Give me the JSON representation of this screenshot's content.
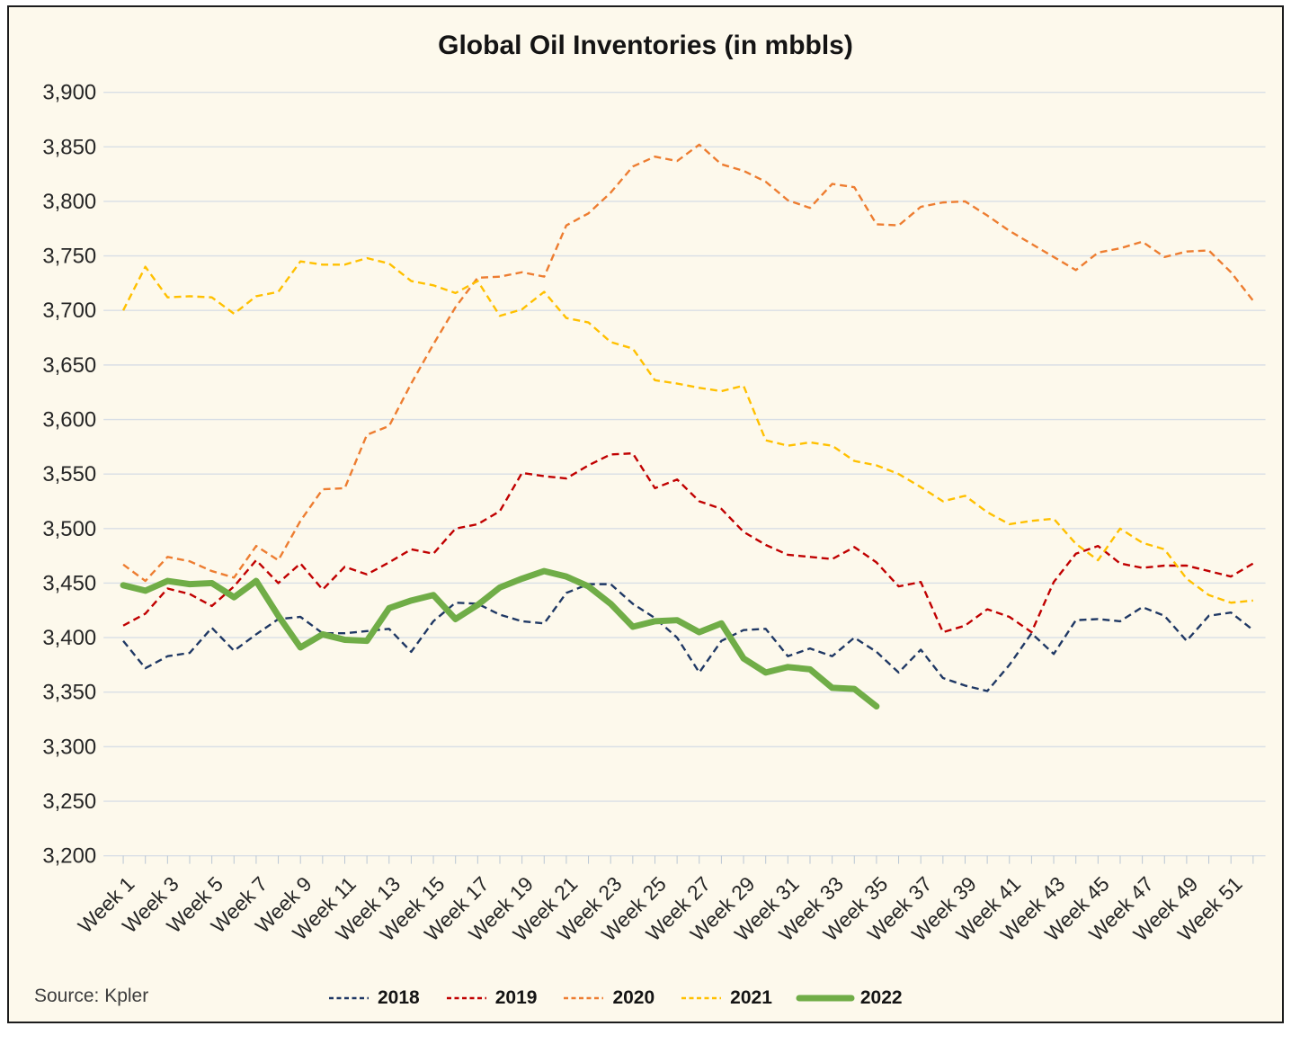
{
  "chart": {
    "background": "#fdf9ec",
    "border_color": "#1c1c1c",
    "gridline_color": "#d9dfe6",
    "tick_color": "#b9c6d4",
    "text_color": "#262626",
    "source_label": "Source: Kpler"
  },
  "chart_data": {
    "type": "line",
    "title": "Global Oil Inventories (in mbbls)",
    "xlabel": "",
    "ylabel": "",
    "ylim": [
      3200,
      3900
    ],
    "grid": "horizontal",
    "legend_position": "bottom",
    "y_ticks": [
      3900,
      3850,
      3800,
      3750,
      3700,
      3650,
      3600,
      3550,
      3500,
      3450,
      3400,
      3350,
      3300,
      3250,
      3200
    ],
    "y_tick_labels": [
      "3,900",
      "3,850",
      "3,800",
      "3,750",
      "3,700",
      "3,650",
      "3,600",
      "3,550",
      "3,500",
      "3,450",
      "3,400",
      "3,350",
      "3,300",
      "3,250",
      "3,200"
    ],
    "x_unit": "week",
    "x_tick_weeks": [
      1,
      3,
      5,
      7,
      9,
      11,
      13,
      15,
      17,
      19,
      21,
      23,
      25,
      27,
      29,
      31,
      33,
      35,
      37,
      39,
      41,
      43,
      45,
      47,
      49,
      51
    ],
    "x_tick_labels": [
      "Week 1",
      "Week 3",
      "Week 5",
      "Week 7",
      "Week 9",
      "Week 11",
      "Week 13",
      "Week 15",
      "Week 17",
      "Week 19",
      "Week 21",
      "Week 23",
      "Week 25",
      "Week 27",
      "Week 29",
      "Week 31",
      "Week 33",
      "Week 35",
      "Week 37",
      "Week 39",
      "Week 41",
      "Week 43",
      "Week 45",
      "Week 47",
      "Week 49",
      "Week 51"
    ],
    "series": [
      {
        "name": "2018",
        "color": "#1f3864",
        "style": "dashed",
        "width": 2.4,
        "values": [
          3397,
          3372,
          3383,
          3386,
          3409,
          3388,
          3403,
          3417,
          3419,
          3404,
          3404,
          3406,
          3408,
          3387,
          3415,
          3432,
          3431,
          3421,
          3415,
          3413,
          3441,
          3449,
          3449,
          3431,
          3418,
          3400,
          3368,
          3397,
          3407,
          3408,
          3383,
          3390,
          3383,
          3400,
          3387,
          3368,
          3389,
          3363,
          3356,
          3351,
          3375,
          3404,
          3385,
          3416,
          3417,
          3415,
          3428,
          3420,
          3397,
          3420,
          3423,
          3407
        ]
      },
      {
        "name": "2019",
        "color": "#c00000",
        "style": "dashed",
        "width": 2.4,
        "values": [
          3411,
          3422,
          3445,
          3440,
          3429,
          3447,
          3471,
          3450,
          3468,
          3444,
          3465,
          3458,
          3469,
          3481,
          3477,
          3500,
          3504,
          3516,
          3551,
          3548,
          3546,
          3558,
          3568,
          3569,
          3537,
          3545,
          3525,
          3518,
          3497,
          3485,
          3476,
          3474,
          3472,
          3483,
          3469,
          3447,
          3451,
          3405,
          3411,
          3426,
          3419,
          3405,
          3451,
          3477,
          3484,
          3468,
          3464,
          3466,
          3466,
          3461,
          3456,
          3468
        ]
      },
      {
        "name": "2020",
        "color": "#ed7d31",
        "style": "dashed",
        "width": 2.4,
        "values": [
          3467,
          3452,
          3474,
          3470,
          3461,
          3455,
          3484,
          3471,
          3507,
          3536,
          3537,
          3586,
          3594,
          3633,
          3669,
          3703,
          3730,
          3731,
          3735,
          3731,
          3778,
          3789,
          3808,
          3832,
          3841,
          3837,
          3852,
          3834,
          3828,
          3818,
          3801,
          3794,
          3816,
          3813,
          3779,
          3778,
          3795,
          3799,
          3800,
          3787,
          3773,
          3761,
          3749,
          3737,
          3753,
          3757,
          3763,
          3749,
          3754,
          3755,
          3735,
          3709
        ]
      },
      {
        "name": "2021",
        "color": "#ffc000",
        "style": "dashed",
        "width": 2.4,
        "values": [
          3700,
          3740,
          3712,
          3713,
          3712,
          3697,
          3713,
          3717,
          3745,
          3742,
          3742,
          3748,
          3743,
          3727,
          3723,
          3716,
          3727,
          3695,
          3701,
          3717,
          3693,
          3689,
          3671,
          3665,
          3636,
          3633,
          3629,
          3626,
          3631,
          3581,
          3576,
          3579,
          3576,
          3562,
          3558,
          3550,
          3538,
          3525,
          3530,
          3515,
          3504,
          3507,
          3509,
          3486,
          3471,
          3500,
          3487,
          3481,
          3454,
          3439,
          3432,
          3434
        ]
      },
      {
        "name": "2022",
        "color": "#70ad47",
        "style": "solid",
        "width": 7,
        "values": [
          3448,
          3443,
          3452,
          3449,
          3450,
          3437,
          3452,
          3420,
          3391,
          3403,
          3398,
          3397,
          3427,
          3434,
          3439,
          3417,
          3430,
          3446,
          3454,
          3461,
          3456,
          3447,
          3431,
          3410,
          3415,
          3416,
          3405,
          3413,
          3381,
          3368,
          3373,
          3371,
          3354,
          3353,
          3337
        ]
      }
    ]
  }
}
